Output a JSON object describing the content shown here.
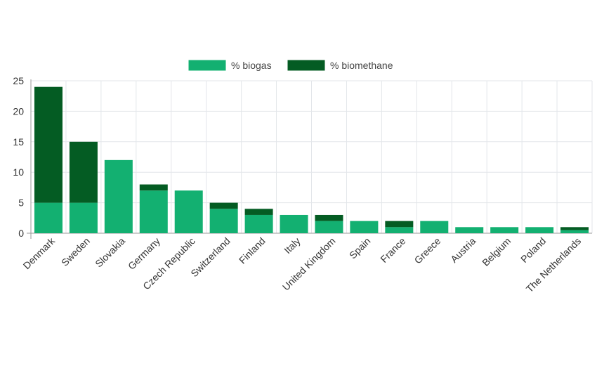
{
  "chart_data": {
    "type": "bar",
    "stacked": true,
    "categories": [
      "Denmark",
      "Sweden",
      "Slovakia",
      "Germany",
      "Czech Republic",
      "Switzerland",
      "Finland",
      "Italy",
      "United Kingdom",
      "Spain",
      "France",
      "Greece",
      "Austria",
      "Belgium",
      "Poland",
      "The Netherlands"
    ],
    "series": [
      {
        "name": "% biogas",
        "color": "#13b071",
        "values": [
          5,
          5,
          12,
          7,
          7,
          4,
          3,
          3,
          2,
          2,
          1,
          2,
          1,
          1,
          1,
          0.5
        ]
      },
      {
        "name": "% biomethane",
        "color": "#045c23",
        "values": [
          19,
          10,
          0,
          1,
          0,
          1,
          1,
          0,
          1,
          0,
          1,
          0,
          0,
          0,
          0,
          0.5
        ]
      }
    ],
    "ylim": [
      0,
      25
    ],
    "yticks": [
      0,
      5,
      10,
      15,
      20,
      25
    ],
    "grid": true,
    "legend_position": "top-center",
    "xlabel": "",
    "ylabel": ""
  }
}
